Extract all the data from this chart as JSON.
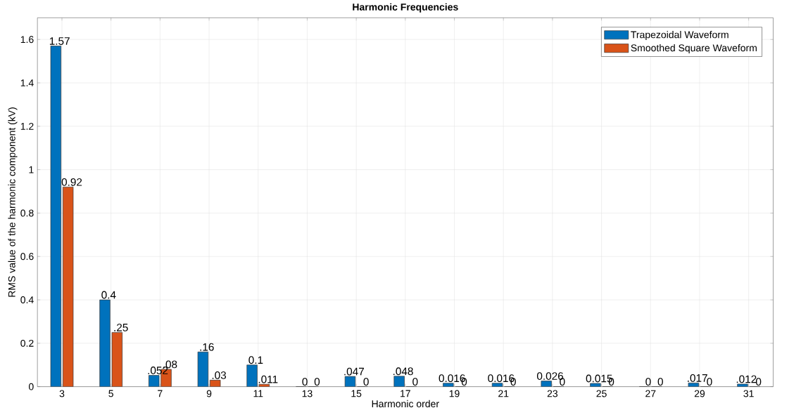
{
  "chart_data": {
    "type": "bar",
    "title": "Harmonic Frequencies",
    "xlabel": "Harmonic order",
    "ylabel": "RMS value of the harmonic component (kV)",
    "categories": [
      "3",
      "5",
      "7",
      "9",
      "11",
      "13",
      "15",
      "17",
      "19",
      "21",
      "23",
      "25",
      "27",
      "29",
      "31"
    ],
    "series": [
      {
        "name": "Trapezoidal Waveform",
        "color": "#0072bd",
        "values": [
          1.57,
          0.4,
          0.052,
          0.16,
          0.1,
          0,
          0.047,
          0.048,
          0.016,
          0.016,
          0.026,
          0.015,
          0,
          0.017,
          0.012
        ],
        "value_labels": [
          "1.57",
          "0.4",
          ".052",
          ".16",
          "0.1",
          "0",
          ".047",
          ".048",
          "0.016",
          "0.016",
          "0.026",
          "0.015",
          "0",
          ".017",
          ".012"
        ]
      },
      {
        "name": "Smoothed Square Waveform",
        "color": "#d95319",
        "values": [
          0.92,
          0.25,
          0.08,
          0.03,
          0.011,
          0,
          0,
          0,
          0,
          0,
          0,
          0,
          0,
          0,
          0
        ],
        "value_labels": [
          "0.92",
          ".25",
          ".08",
          ".03",
          ".011",
          "0",
          "0",
          "0",
          "0",
          "0",
          "0",
          "0",
          "0",
          "0",
          "0"
        ]
      }
    ],
    "ylim": [
      0,
      1.7
    ],
    "yticks": [
      0,
      0.2,
      0.4,
      0.6,
      0.8,
      1,
      1.2,
      1.4,
      1.6
    ],
    "grid": true,
    "legend": "top right"
  }
}
